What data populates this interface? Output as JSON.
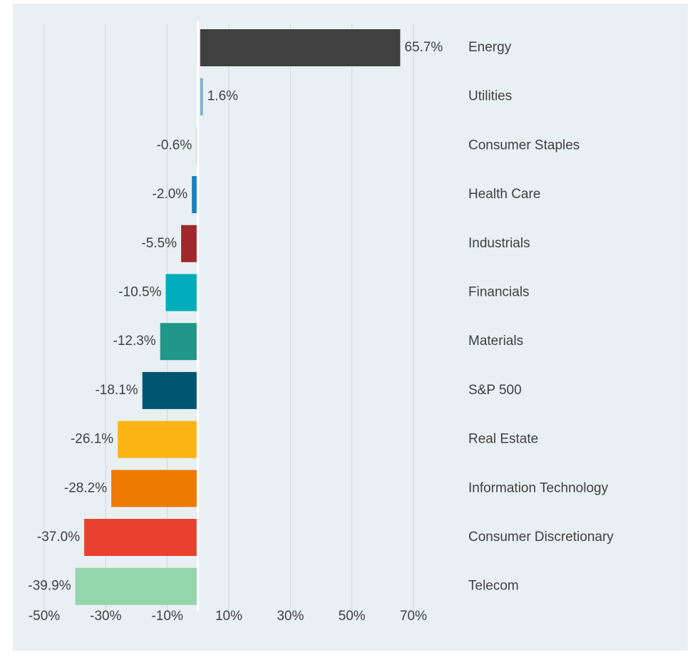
{
  "chart_data": {
    "type": "bar",
    "orientation": "horizontal",
    "categories": [
      "Energy",
      "Utilities",
      "Consumer Staples",
      "Health Care",
      "Industrials",
      "Financials",
      "Materials",
      "S&P 500",
      "Real Estate",
      "Information Technology",
      "Consumer Discretionary",
      "Telecom"
    ],
    "values": [
      65.7,
      1.6,
      -0.6,
      -2.0,
      -5.5,
      -10.5,
      -12.3,
      -18.1,
      -26.1,
      -28.2,
      -37.0,
      -39.9
    ],
    "value_labels": [
      "65.7%",
      "1.6%",
      "-0.6%",
      "-2.0%",
      "-5.5%",
      "-10.5%",
      "-12.3%",
      "-18.1%",
      "-26.1%",
      "-28.2%",
      "-37.0%",
      "-39.9%"
    ],
    "colors": [
      "#404040",
      "#7fb0c8",
      "#a9c8d6",
      "#1a7fc1",
      "#a0282d",
      "#00aebb",
      "#21968a",
      "#005570",
      "#fdb515",
      "#ef7a00",
      "#e8412f",
      "#95d5ab"
    ],
    "xlim": [
      -50,
      70
    ],
    "xticks": [
      {
        "value": -50,
        "label": "-50%"
      },
      {
        "value": -30,
        "label": "-30%"
      },
      {
        "value": -10,
        "label": "-10%"
      },
      {
        "value": 10,
        "label": "10%"
      },
      {
        "value": 30,
        "label": "30%"
      },
      {
        "value": 50,
        "label": "50%"
      },
      {
        "value": 70,
        "label": "70%"
      }
    ],
    "grid": true
  }
}
